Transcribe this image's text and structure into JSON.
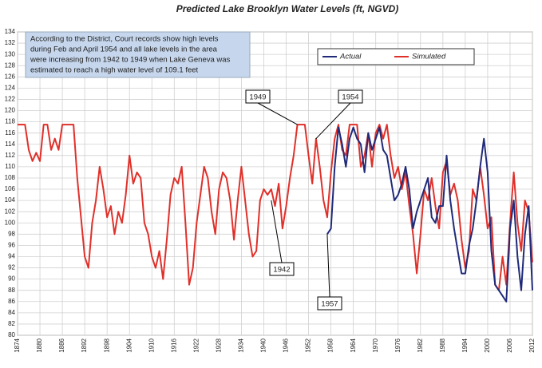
{
  "chart_data": {
    "type": "line",
    "title": "Predicted Lake Brooklyn Water Levels (ft, NGVD)",
    "note": [
      "According to the District, Court records show high levels",
      "during Feb and April 1954 and all lake levels in the area",
      "were increasing from 1942 to 1949 when Lake Geneva was",
      "estimated to reach a high water level of 109.1 feet"
    ],
    "x": [
      1874,
      1875,
      1876,
      1877,
      1878,
      1879,
      1880,
      1881,
      1882,
      1883,
      1884,
      1885,
      1886,
      1887,
      1888,
      1889,
      1890,
      1891,
      1892,
      1893,
      1894,
      1895,
      1896,
      1897,
      1898,
      1899,
      1900,
      1901,
      1902,
      1903,
      1904,
      1905,
      1906,
      1907,
      1908,
      1909,
      1910,
      1911,
      1912,
      1913,
      1914,
      1915,
      1916,
      1917,
      1918,
      1919,
      1920,
      1921,
      1922,
      1923,
      1924,
      1925,
      1926,
      1927,
      1928,
      1929,
      1930,
      1931,
      1932,
      1933,
      1934,
      1935,
      1936,
      1937,
      1938,
      1939,
      1940,
      1941,
      1942,
      1943,
      1944,
      1945,
      1946,
      1947,
      1948,
      1949,
      1950,
      1951,
      1952,
      1953,
      1954,
      1955,
      1956,
      1957,
      1958,
      1959,
      1960,
      1961,
      1962,
      1963,
      1964,
      1965,
      1966,
      1967,
      1968,
      1969,
      1970,
      1971,
      1972,
      1973,
      1974,
      1975,
      1976,
      1977,
      1978,
      1979,
      1980,
      1981,
      1982,
      1983,
      1984,
      1985,
      1986,
      1987,
      1988,
      1989,
      1990,
      1991,
      1992,
      1993,
      1994,
      1995,
      1996,
      1997,
      1998,
      1999,
      2000,
      2001,
      2002,
      2003,
      2004,
      2005,
      2006,
      2007,
      2008,
      2009,
      2010,
      2011,
      2012
    ],
    "series": [
      {
        "name": "Actual",
        "color": "#1f2a7a",
        "values": [
          null,
          null,
          null,
          null,
          null,
          null,
          null,
          null,
          null,
          null,
          null,
          null,
          null,
          null,
          null,
          null,
          null,
          null,
          null,
          null,
          null,
          null,
          null,
          null,
          null,
          null,
          null,
          null,
          null,
          null,
          null,
          null,
          null,
          null,
          null,
          null,
          null,
          null,
          null,
          null,
          null,
          null,
          null,
          null,
          null,
          null,
          null,
          null,
          null,
          null,
          null,
          null,
          null,
          null,
          null,
          null,
          null,
          null,
          null,
          null,
          null,
          null,
          null,
          null,
          null,
          null,
          null,
          null,
          null,
          null,
          null,
          null,
          null,
          null,
          null,
          null,
          null,
          null,
          null,
          null,
          null,
          null,
          null,
          98,
          99,
          110,
          117,
          114,
          110,
          115,
          117,
          115,
          114,
          109,
          116,
          113,
          115,
          117,
          113,
          112,
          108,
          104,
          105,
          107,
          110,
          106,
          99,
          102,
          104,
          106,
          108,
          101,
          100,
          103,
          103,
          112,
          104,
          99,
          95,
          91,
          91,
          96,
          99,
          104,
          110,
          115,
          109,
          95,
          89,
          88,
          87,
          86,
          99,
          104,
          94,
          88,
          98,
          103,
          88
        ]
      },
      {
        "name": "Simulated",
        "color": "#e0302a",
        "values": [
          117.5,
          117.5,
          117.5,
          113,
          111,
          112.5,
          111,
          117.5,
          117.5,
          113,
          115,
          113,
          117.5,
          117.5,
          117.5,
          117.5,
          108,
          101,
          94,
          92,
          100,
          104,
          110,
          106,
          101,
          103,
          98,
          102,
          100,
          105,
          112,
          107,
          109,
          108,
          100,
          98,
          94,
          92,
          95,
          90,
          97,
          105,
          108,
          107,
          110,
          100,
          89,
          92,
          100,
          105,
          110,
          108,
          102,
          98,
          106,
          109,
          108,
          104,
          97,
          104,
          110,
          104,
          98,
          94,
          95,
          104,
          106,
          105,
          106,
          103,
          107,
          99,
          103,
          108,
          112,
          117.5,
          117.5,
          117.5,
          112,
          107,
          115,
          110,
          104,
          101,
          109,
          115,
          117.5,
          113,
          112,
          117.5,
          117.5,
          117.5,
          110,
          112,
          116,
          110,
          116,
          117.5,
          115,
          117.5,
          112,
          108,
          110,
          106,
          109,
          103,
          98,
          91,
          98,
          106,
          104,
          108,
          103,
          99,
          109,
          111,
          105,
          107,
          104,
          97,
          92,
          95,
          106,
          104,
          110,
          105,
          99,
          101,
          89,
          88,
          94,
          89,
          100,
          109,
          100,
          95,
          104,
          102,
          93
        ]
      }
    ],
    "annotations": [
      {
        "text": "1949",
        "x": 1949,
        "y": 117.5
      },
      {
        "text": "1954",
        "x": 1954,
        "y": 115
      },
      {
        "text": "1942",
        "x": 1942,
        "y": 104
      },
      {
        "text": "1957",
        "x": 1957,
        "y": 98
      }
    ],
    "xlim": [
      1874,
      2012
    ],
    "xticks": [
      1874,
      1880,
      1886,
      1892,
      1898,
      1904,
      1910,
      1916,
      1922,
      1928,
      1934,
      1940,
      1946,
      1952,
      1958,
      1964,
      1970,
      1976,
      1982,
      1988,
      1994,
      2000,
      2006,
      2012
    ],
    "ylim": [
      80,
      134
    ],
    "yticks": [
      80,
      82,
      84,
      86,
      88,
      90,
      92,
      94,
      96,
      98,
      100,
      102,
      104,
      106,
      108,
      110,
      112,
      114,
      116,
      118,
      120,
      122,
      124,
      126,
      128,
      130,
      132,
      134
    ],
    "grid": true
  }
}
